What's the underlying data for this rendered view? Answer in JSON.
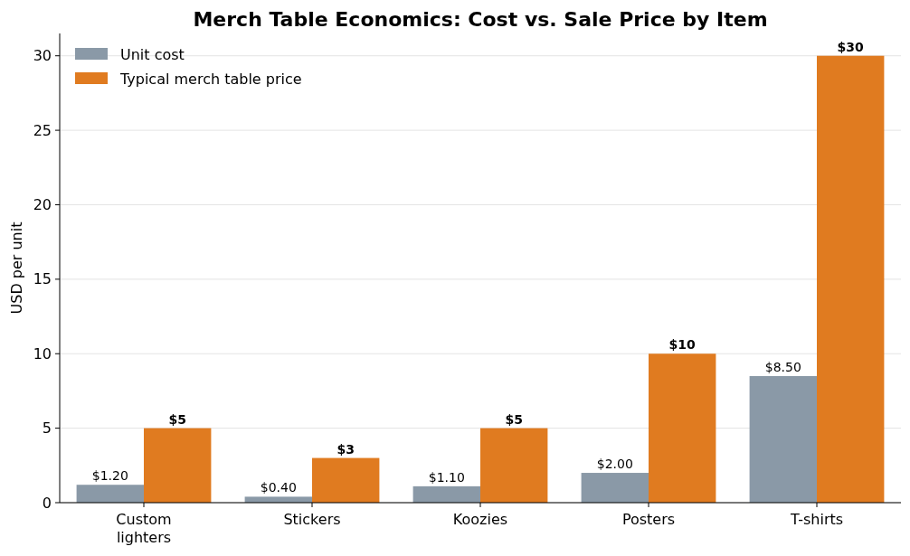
{
  "chart_data": {
    "type": "bar",
    "title": "Merch Table Economics: Cost vs. Sale Price by Item",
    "ylabel": "USD per unit",
    "categories": [
      "Custom lighters",
      "Stickers",
      "Koozies",
      "Posters",
      "T-shirts"
    ],
    "series": [
      {
        "name": "Unit cost",
        "color": "#8a99a7",
        "values": [
          1.2,
          0.4,
          1.1,
          2.0,
          8.5
        ],
        "value_labels": [
          "$1.20",
          "$0.40",
          "$1.10",
          "$2.00",
          "$8.50"
        ]
      },
      {
        "name": "Typical merch table price",
        "color": "#e07b20",
        "values": [
          5,
          3,
          5,
          10,
          30
        ],
        "value_labels": [
          "$5",
          "$3",
          "$5",
          "$10",
          "$30"
        ]
      }
    ],
    "ylim": [
      0,
      31.5
    ],
    "yticks": [
      0,
      5,
      10,
      15,
      20,
      25,
      30
    ],
    "grid": "y",
    "legend": "top left"
  }
}
